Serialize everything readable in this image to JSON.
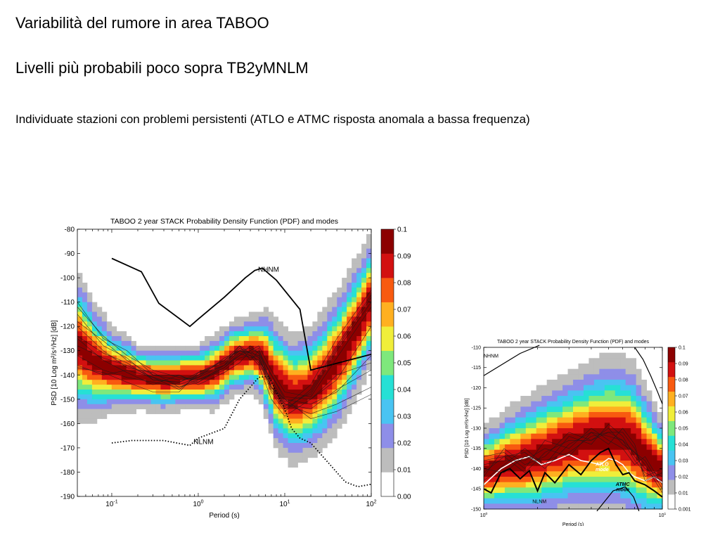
{
  "slide": {
    "title": "Variabilità del rumore in area TABOO",
    "subtitle": "Livelli più probabili poco sopra TB2yMNLM",
    "note": "Individuate stazioni con problemi persistenti (ATLO e ATMC risposta anomala a bassa frequenza)"
  },
  "colors": {
    "colormap": [
      "#ffffff",
      "#bdbdbd",
      "#8e8ee8",
      "#49c4f2",
      "#26e0d5",
      "#7ee87c",
      "#f0ee3a",
      "#ffb020",
      "#f85a10",
      "#d21010",
      "#8c0000"
    ]
  },
  "chart_data": [
    {
      "type": "heatmap",
      "title": "TABOO 2 year STACK Probability Density Function (PDF) and modes",
      "xlabel": "Period (s)",
      "ylabel": "PSD [10 Log m²/s⁴/Hz] [dB]",
      "xscale": "log",
      "xlim": [
        0.04,
        100
      ],
      "ylim": [
        -190,
        -80
      ],
      "xticks": [
        {
          "v": 0.1,
          "base": "10",
          "exp": "-1"
        },
        {
          "v": 1,
          "base": "10",
          "exp": "0"
        },
        {
          "v": 10,
          "base": "10",
          "exp": "1"
        },
        {
          "v": 100,
          "base": "10",
          "exp": "2"
        }
      ],
      "yticks": [
        -80,
        -90,
        -100,
        -110,
        -120,
        -130,
        -140,
        -150,
        -160,
        -170,
        -180,
        -190
      ],
      "colorbar": {
        "ticks": [
          "0.1",
          "0.09",
          "0.08",
          "0.07",
          "0.06",
          "0.05",
          "0.04",
          "0.03",
          "0.02",
          "0.01",
          "0.001"
        ],
        "range": [
          0.001,
          0.1
        ]
      },
      "mode_band": {
        "period": [
          0.04,
          0.06,
          0.1,
          0.2,
          0.4,
          0.7,
          1,
          1.5,
          2.5,
          4,
          5,
          6,
          8,
          12,
          20,
          35,
          60,
          100
        ],
        "center": [
          -128,
          -134,
          -138,
          -141,
          -142,
          -141,
          -141,
          -139,
          -133,
          -131,
          -132,
          -135,
          -144,
          -150,
          -147,
          -137,
          -124,
          -108
        ],
        "spread": [
          14,
          11,
          8,
          6,
          6,
          6,
          6,
          7,
          7,
          7,
          8,
          10,
          12,
          12,
          12,
          13,
          13,
          12
        ]
      },
      "annotations": [
        {
          "text": "NHNM",
          "x": 6.5,
          "y": -97.5
        },
        {
          "text": "NLNM",
          "x": 1.15,
          "y": -168.5
        }
      ],
      "series": [
        {
          "name": "NHNM",
          "style": "solid",
          "x": [
            0.1,
            0.22,
            0.35,
            0.8,
            1.0,
            2.0,
            3.5,
            4.5,
            5.5,
            8.0,
            15,
            20,
            100
          ],
          "y": [
            -92,
            -97.5,
            -110.5,
            -120,
            -117,
            -108,
            -100,
            -97,
            -96,
            -101,
            -113,
            -138,
            -131.5
          ]
        },
        {
          "name": "NLNM",
          "style": "dotted",
          "x": [
            0.1,
            0.17,
            0.4,
            0.8,
            1.0,
            2.0,
            3.0,
            5.0,
            6.5,
            10,
            12,
            15,
            20,
            50,
            70,
            100
          ],
          "y": [
            -168,
            -167,
            -167,
            -169,
            -166,
            -162,
            -150,
            -141,
            -140.5,
            -154,
            -162,
            -166,
            -168,
            -184,
            -186,
            -185
          ]
        },
        {
          "name": "",
          "style": "thin",
          "x": [
            0.04,
            0.08,
            0.15,
            0.3,
            0.6,
            1.0,
            2.0,
            3.0,
            4.0,
            5.0,
            7.0,
            10,
            20,
            40,
            100
          ],
          "y": [
            -110,
            -125,
            -130,
            -140,
            -142,
            -141,
            -136,
            -128,
            -131,
            -129,
            -145,
            -152,
            -156,
            -152,
            -145
          ]
        },
        {
          "name": "",
          "style": "thin",
          "x": [
            0.04,
            0.08,
            0.15,
            0.3,
            0.6,
            1.0,
            2.0,
            3.0,
            4.0,
            5.0,
            7.0,
            10,
            20,
            40,
            100
          ],
          "y": [
            -115,
            -128,
            -133,
            -142,
            -143,
            -139,
            -134,
            -130,
            -129,
            -131,
            -140,
            -149,
            -150,
            -142,
            -120
          ]
        },
        {
          "name": "",
          "style": "thin",
          "x": [
            0.04,
            0.08,
            0.15,
            0.3,
            0.6,
            1.0,
            2.0,
            3.0,
            4.0,
            5.0,
            7.0,
            10,
            20,
            40,
            100
          ],
          "y": [
            -120,
            -130,
            -137,
            -139,
            -145,
            -142,
            -138,
            -133,
            -132,
            -134,
            -142,
            -151,
            -148,
            -130,
            -110
          ]
        },
        {
          "name": "",
          "style": "thin",
          "x": [
            0.04,
            0.08,
            0.15,
            0.3,
            0.6,
            1.0,
            2.0,
            3.0,
            4.0,
            5.0,
            7.0,
            10,
            20,
            40,
            100
          ],
          "y": [
            -125,
            -134,
            -139,
            -144,
            -140,
            -143,
            -137,
            -131,
            -133,
            -132,
            -145,
            -153,
            -144,
            -125,
            -105
          ]
        },
        {
          "name": "",
          "style": "thin",
          "x": [
            0.04,
            0.08,
            0.15,
            0.3,
            0.6,
            1.0,
            2.0,
            3.0,
            4.0,
            5.0,
            7.0,
            10,
            20,
            40,
            100
          ],
          "y": [
            -128,
            -133,
            -136,
            -141,
            -146,
            -140,
            -134,
            -128,
            -134,
            -130,
            -140,
            -150,
            -158,
            -155,
            -148
          ]
        },
        {
          "name": "",
          "style": "thin",
          "x": [
            0.04,
            0.08,
            0.15,
            0.3,
            0.6,
            1.0,
            2.0,
            3.0,
            4.0,
            5.0,
            7.0,
            10,
            20,
            40,
            100
          ],
          "y": [
            -132,
            -138,
            -141,
            -143,
            -145,
            -143,
            -136,
            -132,
            -130,
            -133,
            -147,
            -155,
            -146,
            -128,
            -107
          ]
        },
        {
          "name": "",
          "style": "thin",
          "x": [
            0.04,
            0.08,
            0.15,
            0.3,
            0.6,
            1.0,
            2.0,
            3.0,
            4.0,
            5.0,
            7.0,
            10,
            20,
            40,
            100
          ],
          "y": [
            -136,
            -140,
            -138,
            -141,
            -144,
            -141,
            -133,
            -130,
            -132,
            -136,
            -150,
            -157,
            -150,
            -140,
            -135
          ]
        },
        {
          "name": "",
          "style": "thin",
          "x": [
            0.04,
            0.08,
            0.15,
            0.3,
            0.6,
            1.0,
            2.0,
            3.0,
            4.0,
            5.0,
            7.0,
            10,
            20,
            40,
            100
          ],
          "y": [
            -137,
            -139,
            -143,
            -147,
            -147,
            -139,
            -135,
            -129,
            -131,
            -135,
            -145,
            -150,
            -152,
            -147,
            -132
          ]
        },
        {
          "name": "",
          "style": "thin",
          "x": [
            0.04,
            0.08,
            0.15,
            0.3,
            0.6,
            1.0,
            2.0,
            3.0,
            4.0,
            5.0,
            7.0,
            10,
            20,
            40,
            100
          ],
          "y": [
            -118,
            -126,
            -134,
            -140,
            -140,
            -144,
            -139,
            -135,
            -130,
            -128,
            -138,
            -147,
            -149,
            -133,
            -112
          ]
        },
        {
          "name": "",
          "style": "thin",
          "x": [
            0.04,
            0.08,
            0.15,
            0.3,
            0.6,
            1.0,
            2.0,
            3.0,
            4.0,
            5.0,
            7.0,
            10,
            20,
            40,
            100
          ],
          "y": [
            -112,
            -124,
            -132,
            -138,
            -141,
            -142,
            -137,
            -132,
            -128,
            -131,
            -143,
            -152,
            -154,
            -146,
            -138
          ]
        },
        {
          "name": "",
          "style": "thin",
          "x": [
            0.04,
            0.08,
            0.15,
            0.3,
            0.6,
            1.0,
            2.0,
            3.0,
            4.0,
            5.0,
            7.0,
            10,
            20,
            40,
            100
          ],
          "y": [
            -124,
            -131,
            -135,
            -142,
            -143,
            -140,
            -136,
            -130,
            -131,
            -132,
            -146,
            -154,
            -147,
            -129,
            -108
          ]
        }
      ]
    },
    {
      "type": "heatmap",
      "title": "TABOO 2 year STACK Probability Density Function (PDF) and modes",
      "xlabel": "Period (s)",
      "ylabel": "PSD [10 Log m²/s⁴/Hz] [dB]",
      "xscale": "log",
      "xlim": [
        1,
        10
      ],
      "ylim": [
        -150,
        -110
      ],
      "xticks": [
        {
          "v": 1,
          "base": "10",
          "exp": "0"
        },
        {
          "v": 10,
          "base": "10",
          "exp": "1"
        }
      ],
      "yticks": [
        -110,
        -115,
        -120,
        -125,
        -130,
        -135,
        -140,
        -145,
        -150
      ],
      "colorbar": {
        "ticks": [
          "0.1",
          "0.09",
          "0.08",
          "0.07",
          "0.06",
          "0.05",
          "0.04",
          "0.03",
          "0.02",
          "0.01",
          "0.001"
        ],
        "range": [
          0.001,
          0.1
        ]
      },
      "mode_band": {
        "period": [
          1,
          1.3,
          1.7,
          2.2,
          3,
          4,
          5,
          6,
          7,
          8,
          10
        ],
        "center": [
          -141,
          -139,
          -138,
          -136,
          -134,
          -132.5,
          -132,
          -132.5,
          -134,
          -137,
          -141
        ],
        "spread": [
          5,
          6,
          7,
          7.5,
          8,
          8.5,
          9,
          9,
          9,
          8,
          6
        ]
      },
      "annotations": [
        {
          "text": "NHNM",
          "x": 1.1,
          "y": -112.5
        },
        {
          "text": "NLNM",
          "x": 2.05,
          "y": -148.5
        },
        {
          "text": "ATLO",
          "x": 4.6,
          "y": -139.3,
          "color": "#ffffff"
        },
        {
          "text": "mode",
          "x": 4.6,
          "y": -140.6,
          "color": "#ffffff"
        },
        {
          "text": "ATMC",
          "x": 6.0,
          "y": -144.3,
          "color": "#000000"
        },
        {
          "text": "mode",
          "x": 6.0,
          "y": -145.6,
          "color": "#000000"
        }
      ],
      "series": [
        {
          "name": "NHNM",
          "style": "solid",
          "x": [
            1.0,
            1.6,
            2.05
          ],
          "y": [
            -117,
            -111.5,
            -109.5
          ]
        },
        {
          "name": "NHNM",
          "style": "solid",
          "x": [
            7.0,
            7.8,
            8.6,
            9.4,
            10
          ],
          "y": [
            -110,
            -113,
            -117,
            -121,
            -124
          ]
        },
        {
          "name": "NLNM",
          "style": "solid",
          "x": [
            4.3,
            5.3,
            6.2,
            6.9,
            7.4
          ],
          "y": [
            -150.5,
            -145.5,
            -144.5,
            -147,
            -150.5
          ]
        },
        {
          "name": "ATLO mode",
          "style": "white",
          "x": [
            1.0,
            1.25,
            1.5,
            1.8,
            2.1,
            2.5,
            3.0,
            3.5,
            4.0,
            4.5,
            5.0,
            5.5,
            6.0,
            6.5,
            7.0,
            8.0,
            9.0,
            10.0
          ],
          "y": [
            -144,
            -140,
            -138,
            -137,
            -139,
            -138,
            -136.5,
            -138,
            -138.5,
            -139,
            -137.5,
            -138,
            -139,
            -141,
            -142,
            -143,
            -142,
            -143.5
          ]
        },
        {
          "name": "ATMC mode",
          "style": "black",
          "x": [
            1.0,
            1.1,
            1.25,
            1.4,
            1.6,
            1.8,
            2.0,
            2.2,
            2.5,
            3.0,
            3.5,
            4.0,
            4.5,
            5.0,
            5.5,
            6.0,
            6.5,
            7.0,
            8.0,
            9.0,
            10.0
          ],
          "y": [
            -145,
            -146,
            -141,
            -140,
            -142.5,
            -140.5,
            -145.5,
            -141,
            -143.5,
            -139,
            -141.5,
            -138,
            -136,
            -135,
            -139,
            -141.5,
            -141,
            -143,
            -144,
            -145.5,
            -147
          ]
        },
        {
          "name": "",
          "style": "thin",
          "x": [
            1.0,
            1.3,
            1.7,
            2.2,
            3.0,
            4.0,
            5.0,
            6.0,
            7.0,
            8.0,
            10
          ],
          "y": [
            -138,
            -137,
            -136,
            -140,
            -134,
            -131,
            -132,
            -133,
            -138,
            -141,
            -143
          ]
        },
        {
          "name": "",
          "style": "thin",
          "x": [
            1.0,
            1.3,
            1.7,
            2.2,
            3.0,
            4.0,
            5.0,
            6.0,
            7.0,
            8.0,
            10
          ],
          "y": [
            -142,
            -135,
            -139,
            -137,
            -131,
            -133,
            -130,
            -134,
            -136,
            -139,
            -146
          ]
        },
        {
          "name": "",
          "style": "thin",
          "x": [
            1.0,
            1.3,
            1.7,
            2.2,
            3.0,
            4.0,
            5.0,
            6.0,
            7.0,
            8.0,
            10
          ],
          "y": [
            -140,
            -141,
            -137,
            -138,
            -136,
            -132,
            -131,
            -131,
            -135,
            -142,
            -140
          ]
        },
        {
          "name": "",
          "style": "thin",
          "x": [
            1.0,
            1.3,
            1.7,
            2.2,
            3.0,
            4.0,
            5.0,
            6.0,
            7.0,
            8.0,
            10
          ],
          "y": [
            -137,
            -136,
            -140,
            -133,
            -135,
            -130,
            -133,
            -135,
            -139,
            -137,
            -144
          ]
        },
        {
          "name": "",
          "style": "thin",
          "x": [
            1.0,
            1.3,
            1.7,
            2.2,
            3.0,
            4.0,
            5.0,
            6.0,
            7.0,
            8.0,
            10
          ],
          "y": [
            -143,
            -139,
            -135,
            -139,
            -132,
            -134,
            -129,
            -132,
            -137,
            -140,
            -142
          ]
        },
        {
          "name": "",
          "style": "thin",
          "x": [
            1.0,
            1.3,
            1.7,
            2.2,
            3.0,
            4.0,
            5.0,
            6.0,
            7.0,
            8.0,
            10
          ],
          "y": [
            -139,
            -138,
            -138,
            -135,
            -137,
            -131,
            -134,
            -130,
            -134,
            -143,
            -141
          ]
        },
        {
          "name": "",
          "style": "thin",
          "x": [
            1.0,
            1.3,
            1.7,
            2.2,
            3.0,
            4.0,
            5.0,
            6.0,
            7.0,
            8.0,
            10
          ],
          "y": [
            -141,
            -137,
            -141,
            -136,
            -133,
            -133,
            -131,
            -133,
            -136,
            -138,
            -145
          ]
        }
      ]
    }
  ]
}
